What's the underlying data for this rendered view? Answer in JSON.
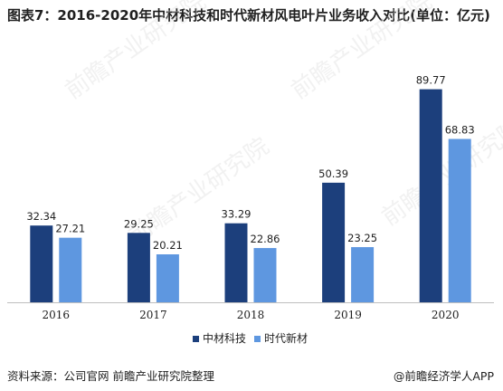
{
  "title": "图表7：2016-2020年中材科技和时代新材风电叶片业务收入对比(单位：亿元)",
  "source": "资料来源：公司官网 前瞻产业研究院整理",
  "brand": "@前瞻经济学人APP",
  "watermark": "前瞻产业研究院",
  "colors": {
    "series1": "#1c3f7c",
    "series2": "#5e97e0"
  },
  "chart_data": {
    "type": "bar",
    "title": "图表7：2016-2020年中材科技和时代新材风电叶片业务收入对比(单位：亿元)",
    "categories": [
      "2016",
      "2017",
      "2018",
      "2019",
      "2020"
    ],
    "series": [
      {
        "name": "中材科技",
        "values": [
          32.34,
          29.25,
          33.29,
          50.39,
          89.77
        ],
        "labels": [
          "32.34",
          "29.25",
          "33.29",
          "50.39",
          "89.77"
        ]
      },
      {
        "name": "时代新材",
        "values": [
          27.21,
          20.21,
          22.86,
          23.25,
          68.83
        ],
        "labels": [
          "27.21",
          "20.21",
          "22.86",
          "23.25",
          "68.83"
        ]
      }
    ],
    "ylim": [
      0,
      100
    ],
    "grid": false,
    "legend": "bottom-center"
  }
}
